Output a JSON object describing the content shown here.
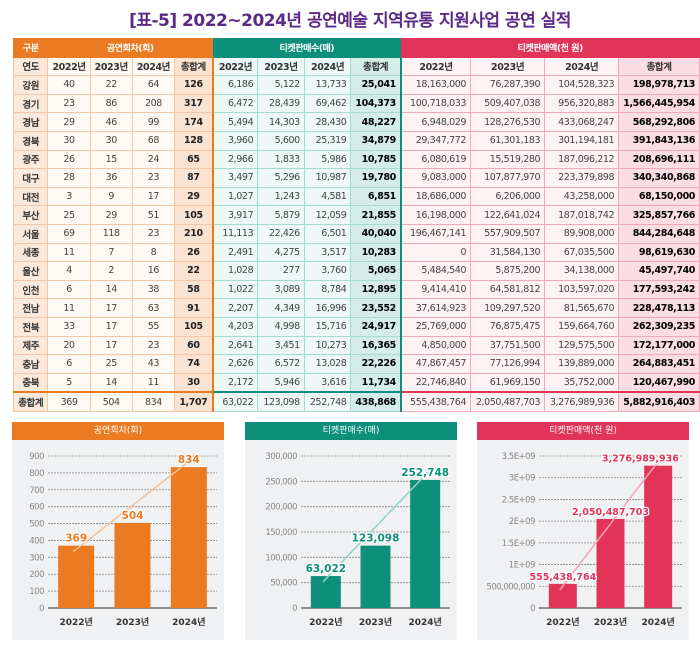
{
  "title": "[표-5] 2022~2024년 공연예술 지역유통 지원사업 공연 실적",
  "table": {
    "corner": "구분",
    "year_label": "연도",
    "groups": [
      "공연회차(회)",
      "티켓판매수(매)",
      "티켓판매액(천 원)"
    ],
    "subheaders": [
      "2022년",
      "2023년",
      "2024년",
      "총합계"
    ],
    "rows": [
      [
        "강원",
        "40",
        "22",
        "64",
        "126",
        "6,186",
        "5,122",
        "13,733",
        "25,041",
        "18,163,000",
        "76,287,390",
        "104,528,323",
        "198,978,713"
      ],
      [
        "경기",
        "23",
        "86",
        "208",
        "317",
        "6,472",
        "28,439",
        "69,462",
        "104,373",
        "100,718,033",
        "509,407,038",
        "956,320,883",
        "1,566,445,954"
      ],
      [
        "경남",
        "29",
        "46",
        "99",
        "174",
        "5,494",
        "14,303",
        "28,430",
        "48,227",
        "6,948,029",
        "128,276,530",
        "433,068,247",
        "568,292,806"
      ],
      [
        "경북",
        "30",
        "30",
        "68",
        "128",
        "3,960",
        "5,600",
        "25,319",
        "34,879",
        "29,347,772",
        "61,301,183",
        "301,194,181",
        "391,843,136"
      ],
      [
        "광주",
        "26",
        "15",
        "24",
        "65",
        "2,966",
        "1,833",
        "5,986",
        "10,785",
        "6,080,619",
        "15,519,280",
        "187,096,212",
        "208,696,111"
      ],
      [
        "대구",
        "28",
        "36",
        "23",
        "87",
        "3,497",
        "5,296",
        "10,987",
        "19,780",
        "9,083,000",
        "107,877,970",
        "223,379,898",
        "340,340,868"
      ],
      [
        "대전",
        "3",
        "9",
        "17",
        "29",
        "1,027",
        "1,243",
        "4,581",
        "6,851",
        "18,686,000",
        "6,206,000",
        "43,258,000",
        "68,150,000"
      ],
      [
        "부산",
        "25",
        "29",
        "51",
        "105",
        "3,917",
        "5,879",
        "12,059",
        "21,855",
        "16,198,000",
        "122,641,024",
        "187,018,742",
        "325,857,766"
      ],
      [
        "서울",
        "69",
        "118",
        "23",
        "210",
        "11,113",
        "22,426",
        "6,501",
        "40,040",
        "196,467,141",
        "557,909,507",
        "89,908,000",
        "844,284,648"
      ],
      [
        "세종",
        "11",
        "7",
        "8",
        "26",
        "2,491",
        "4,275",
        "3,517",
        "10,283",
        "0",
        "31,584,130",
        "67,035,500",
        "98,619,630"
      ],
      [
        "울산",
        "4",
        "2",
        "16",
        "22",
        "1,028",
        "277",
        "3,760",
        "5,065",
        "5,484,540",
        "5,875,200",
        "34,138,000",
        "45,497,740"
      ],
      [
        "인천",
        "6",
        "14",
        "38",
        "58",
        "1,022",
        "3,089",
        "8,784",
        "12,895",
        "9,414,410",
        "64,581,812",
        "103,597,020",
        "177,593,242"
      ],
      [
        "전남",
        "11",
        "17",
        "63",
        "91",
        "2,207",
        "4,349",
        "16,996",
        "23,552",
        "37,614,923",
        "109,297,520",
        "81,565,670",
        "228,478,113"
      ],
      [
        "전북",
        "33",
        "17",
        "55",
        "105",
        "4,203",
        "4,998",
        "15,716",
        "24,917",
        "25,769,000",
        "76,875,475",
        "159,664,760",
        "262,309,235"
      ],
      [
        "제주",
        "20",
        "17",
        "23",
        "60",
        "2,641",
        "3,451",
        "10,273",
        "16,365",
        "4,850,000",
        "37,751,500",
        "129,575,500",
        "172,177,000"
      ],
      [
        "충남",
        "6",
        "25",
        "43",
        "74",
        "2,626",
        "6,572",
        "13,028",
        "22,226",
        "47,867,457",
        "77,126,994",
        "139,889,000",
        "264,883,451"
      ],
      [
        "충북",
        "5",
        "14",
        "11",
        "30",
        "2,172",
        "5,946",
        "3,616",
        "11,734",
        "22,746,840",
        "61,969,150",
        "35,752,000",
        "120,467,990"
      ],
      [
        "총합계",
        "369",
        "504",
        "834",
        "1,707",
        "63,022",
        "123,098",
        "252,748",
        "438,868",
        "555,438,764",
        "2,050,487,703",
        "3,276,989,936",
        "5,882,916,403"
      ]
    ]
  },
  "chart_data": [
    {
      "type": "bar",
      "title": "공연회차(회)",
      "categories": [
        "2022년",
        "2023년",
        "2024년"
      ],
      "values": [
        369,
        504,
        834
      ],
      "labels": [
        "369",
        "504",
        "834"
      ],
      "ylim": [
        0,
        900
      ],
      "yticks": [
        "0",
        "100",
        "200",
        "300",
        "400",
        "500",
        "600",
        "700",
        "800",
        "900"
      ],
      "tickvals": [
        0,
        100,
        200,
        300,
        400,
        500,
        600,
        700,
        800,
        900
      ],
      "trendline": true,
      "grid": true,
      "color": "#ea7b22",
      "trend_color": "#f6c08f"
    },
    {
      "type": "bar",
      "title": "티켓판매수(매)",
      "categories": [
        "2022년",
        "2023년",
        "2024년"
      ],
      "values": [
        63022,
        123098,
        252748
      ],
      "labels": [
        "63,022",
        "123,098",
        "252,748"
      ],
      "ylim": [
        0,
        300000
      ],
      "yticks": [
        "0",
        "50,000",
        "100,000",
        "150,000",
        "200,000",
        "250,000",
        "300,000"
      ],
      "tickvals": [
        0,
        50000,
        100000,
        150000,
        200000,
        250000,
        300000
      ],
      "trendline": true,
      "grid": true,
      "color": "#0e8f7c",
      "trend_color": "#8fd4c6"
    },
    {
      "type": "bar",
      "title": "티켓판매액(천 원)",
      "categories": [
        "2022년",
        "2023년",
        "2024년"
      ],
      "values": [
        555438764,
        2050487703,
        3276989936
      ],
      "labels": [
        "555,438,764",
        "2,050,487,703",
        "3,276,989,936"
      ],
      "ylim": [
        0,
        3500000000
      ],
      "yticks": [
        "0",
        "500,000,000",
        "1E+09",
        "1.5E+09",
        "2E+09",
        "2.5E+09",
        "3E+09",
        "3.5E+09"
      ],
      "tickvals": [
        0,
        500000000,
        1000000000,
        1500000000,
        2000000000,
        2500000000,
        3000000000,
        3500000000
      ],
      "trendline": true,
      "grid": true,
      "color": "#e23458",
      "trend_color": "#f4a3b4"
    }
  ]
}
